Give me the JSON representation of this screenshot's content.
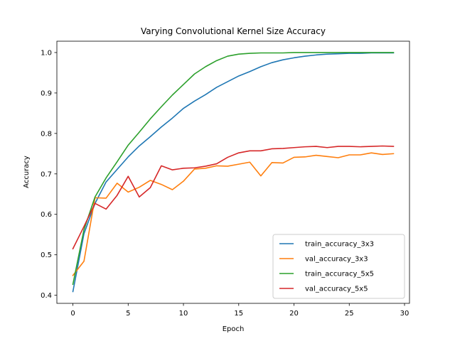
{
  "chart_data": {
    "type": "line",
    "title": "Varying Convolutional Kernel Size Accuracy",
    "xlabel": "Epoch",
    "ylabel": "Accuracy",
    "xlim": [
      -1.45,
      30.45
    ],
    "ylim": [
      0.38,
      1.028
    ],
    "xticks": [
      0,
      5,
      10,
      15,
      20,
      25,
      30
    ],
    "yticks": [
      0.4,
      0.5,
      0.6,
      0.7,
      0.8,
      0.9,
      1.0
    ],
    "ytick_labels": [
      "0.4",
      "0.5",
      "0.6",
      "0.7",
      "0.8",
      "0.9",
      "1.0"
    ],
    "legend_position": "lower-right",
    "x": [
      0,
      1,
      2,
      3,
      4,
      5,
      6,
      7,
      8,
      9,
      10,
      11,
      12,
      13,
      14,
      15,
      16,
      17,
      18,
      19,
      20,
      21,
      22,
      23,
      24,
      25,
      26,
      27,
      28,
      29
    ],
    "series": [
      {
        "name": "train_accuracy_3x3",
        "color": "#1f77b4",
        "values": [
          0.409,
          0.552,
          0.627,
          0.68,
          0.711,
          0.742,
          0.769,
          0.792,
          0.816,
          0.838,
          0.862,
          0.88,
          0.896,
          0.914,
          0.928,
          0.942,
          0.953,
          0.965,
          0.975,
          0.982,
          0.987,
          0.991,
          0.994,
          0.996,
          0.997,
          0.998,
          0.998,
          0.999,
          0.999,
          0.999
        ]
      },
      {
        "name": "val_accuracy_3x3",
        "color": "#ff7f0e",
        "values": [
          0.449,
          0.484,
          0.641,
          0.64,
          0.677,
          0.655,
          0.667,
          0.684,
          0.674,
          0.661,
          0.682,
          0.712,
          0.714,
          0.72,
          0.719,
          0.724,
          0.729,
          0.695,
          0.728,
          0.727,
          0.741,
          0.742,
          0.746,
          0.743,
          0.74,
          0.747,
          0.747,
          0.752,
          0.748,
          0.75
        ]
      },
      {
        "name": "train_accuracy_5x5",
        "color": "#2ca02c",
        "values": [
          0.427,
          0.562,
          0.643,
          0.69,
          0.73,
          0.771,
          0.803,
          0.836,
          0.866,
          0.895,
          0.921,
          0.947,
          0.965,
          0.98,
          0.991,
          0.996,
          0.998,
          0.999,
          0.999,
          0.999,
          1.0,
          1.0,
          1.0,
          1.0,
          1.0,
          1.0,
          1.0,
          1.0,
          1.0,
          1.0
        ]
      },
      {
        "name": "val_accuracy_5x5",
        "color": "#d62728",
        "values": [
          0.515,
          0.57,
          0.627,
          0.613,
          0.647,
          0.694,
          0.643,
          0.666,
          0.72,
          0.71,
          0.714,
          0.715,
          0.719,
          0.725,
          0.741,
          0.752,
          0.757,
          0.757,
          0.762,
          0.763,
          0.765,
          0.767,
          0.768,
          0.765,
          0.768,
          0.768,
          0.767,
          0.768,
          0.769,
          0.768
        ]
      }
    ]
  }
}
